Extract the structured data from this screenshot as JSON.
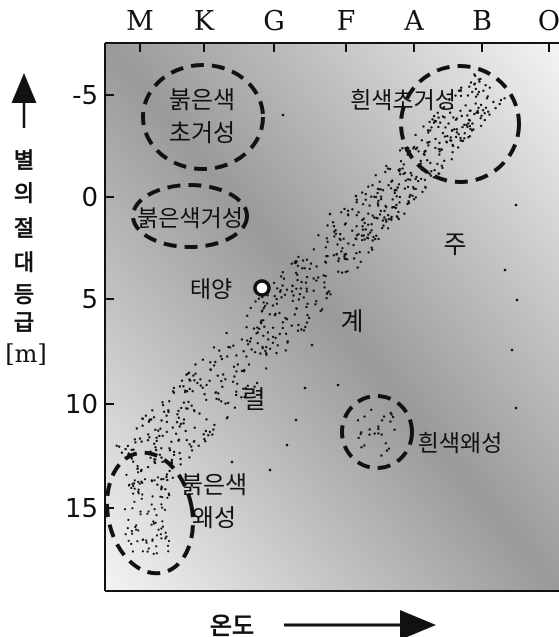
{
  "spectral_classes": [
    "M",
    "K",
    "G",
    "F",
    "A",
    "B",
    "O"
  ],
  "y_axis": {
    "ticks": [
      "-5",
      "0",
      "5",
      "10",
      "15"
    ],
    "label_chars": [
      "별",
      "의",
      "절",
      "대",
      "등",
      "급"
    ],
    "unit": "[m]"
  },
  "x_axis": {
    "label": "온도"
  },
  "regions": {
    "red_supergiant": [
      "붉은색",
      "초거성"
    ],
    "red_giant": "붉은색거성",
    "white_supergiant": "흰색초거성",
    "main_sequence": [
      "주",
      "계",
      "렬"
    ],
    "sun": "태양",
    "white_dwarf": "흰색왜성",
    "red_dwarf": [
      "붉은색",
      "왜성"
    ]
  }
}
